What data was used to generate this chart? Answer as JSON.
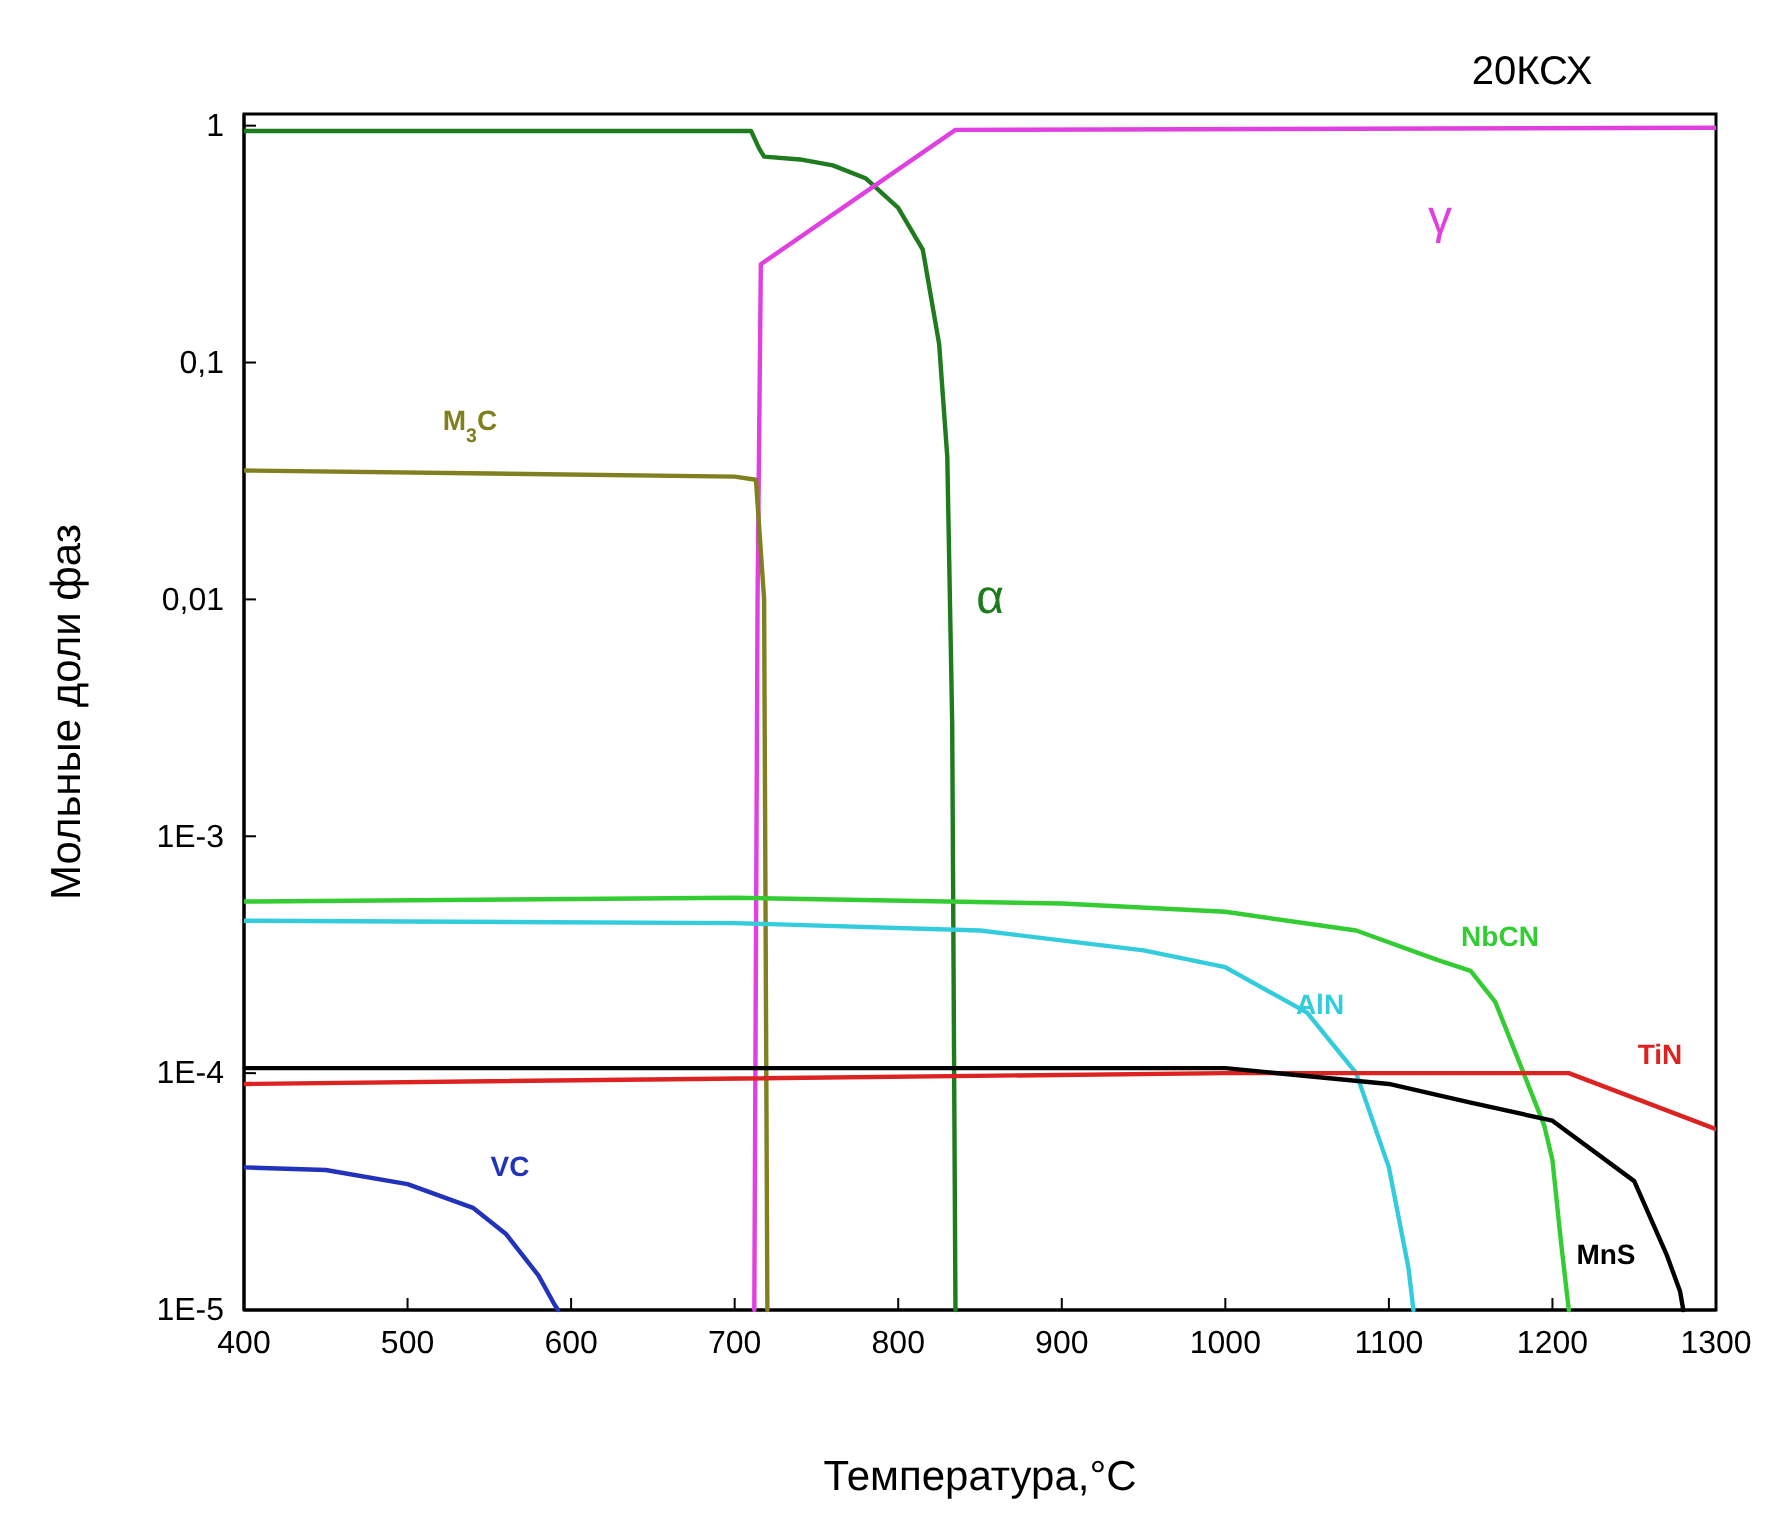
{
  "chart_data": {
    "type": "line",
    "title": "20КСХ",
    "xlabel": "Температура,°C",
    "ylabel": "Мольные доли фаз",
    "log": true,
    "grid": false,
    "marker": "none",
    "line_style": "solid",
    "xlim": [
      400,
      1300
    ],
    "xticks": [
      400,
      500,
      600,
      700,
      800,
      900,
      1000,
      1100,
      1200,
      1300
    ],
    "ylim": [
      1e-05,
      1.12
    ],
    "yticks": [
      {
        "value": 1,
        "label": "1"
      },
      {
        "value": 0.1,
        "label": "0,1"
      },
      {
        "value": 0.01,
        "label": "0,01"
      },
      {
        "value": 0.001,
        "label": "1E-3"
      },
      {
        "value": 0.0001,
        "label": "1E-4"
      },
      {
        "value": 1e-05,
        "label": "1E-5"
      }
    ],
    "series": [
      {
        "name": "α",
        "color": "#1e7b1e",
        "x": [
          400,
          710,
          715,
          718,
          740,
          760,
          780,
          800,
          815,
          825,
          830,
          833,
          835
        ],
        "values": [
          0.95,
          0.95,
          0.8,
          0.74,
          0.72,
          0.68,
          0.6,
          0.45,
          0.3,
          0.12,
          0.04,
          0.003,
          1e-05
        ]
      },
      {
        "name": "γ",
        "color": "#e040e0",
        "x": [
          712,
          714,
          716,
          835,
          1300
        ],
        "values": [
          1e-05,
          0.01,
          0.26,
          0.96,
          0.98
        ]
      },
      {
        "name": "M$_{3}$C",
        "color": "#808020",
        "x": [
          400,
          550,
          700,
          713,
          718,
          720
        ],
        "values": [
          0.035,
          0.034,
          0.033,
          0.032,
          0.01,
          1e-05
        ]
      },
      {
        "name": "NbCN",
        "color": "#33cc33",
        "x": [
          400,
          700,
          900,
          1000,
          1080,
          1130,
          1150,
          1165,
          1180,
          1195,
          1200,
          1205,
          1210
        ],
        "values": [
          0.00053,
          0.00055,
          0.00052,
          0.00048,
          0.0004,
          0.0003,
          0.00027,
          0.0002,
          0.00011,
          6e-05,
          4.3e-05,
          2e-05,
          1e-05
        ]
      },
      {
        "name": "AlN",
        "color": "#33ccdd",
        "x": [
          400,
          700,
          850,
          950,
          1000,
          1050,
          1080,
          1100,
          1112,
          1115
        ],
        "values": [
          0.00044,
          0.00043,
          0.0004,
          0.00033,
          0.00028,
          0.00018,
          0.0001,
          4e-05,
          1.5e-05,
          1e-05
        ]
      },
      {
        "name": "TiN",
        "color": "#dd2222",
        "x": [
          400,
          1000,
          1210,
          1300
        ],
        "values": [
          9e-05,
          0.0001,
          0.0001,
          5.8e-05
        ]
      },
      {
        "name": "MnS",
        "color": "#000000",
        "x": [
          400,
          1000,
          1100,
          1150,
          1200,
          1250,
          1270,
          1278,
          1280
        ],
        "values": [
          0.000105,
          0.000105,
          9e-05,
          7.5e-05,
          6.3e-05,
          3.5e-05,
          1.7e-05,
          1.2e-05,
          1e-05
        ]
      },
      {
        "name": "VC",
        "color": "#2233bb",
        "x": [
          400,
          450,
          500,
          540,
          560,
          580,
          590,
          592
        ],
        "values": [
          4e-05,
          3.9e-05,
          3.4e-05,
          2.7e-05,
          2.1e-05,
          1.4e-05,
          1.05e-05,
          1e-05
        ]
      }
    ]
  }
}
